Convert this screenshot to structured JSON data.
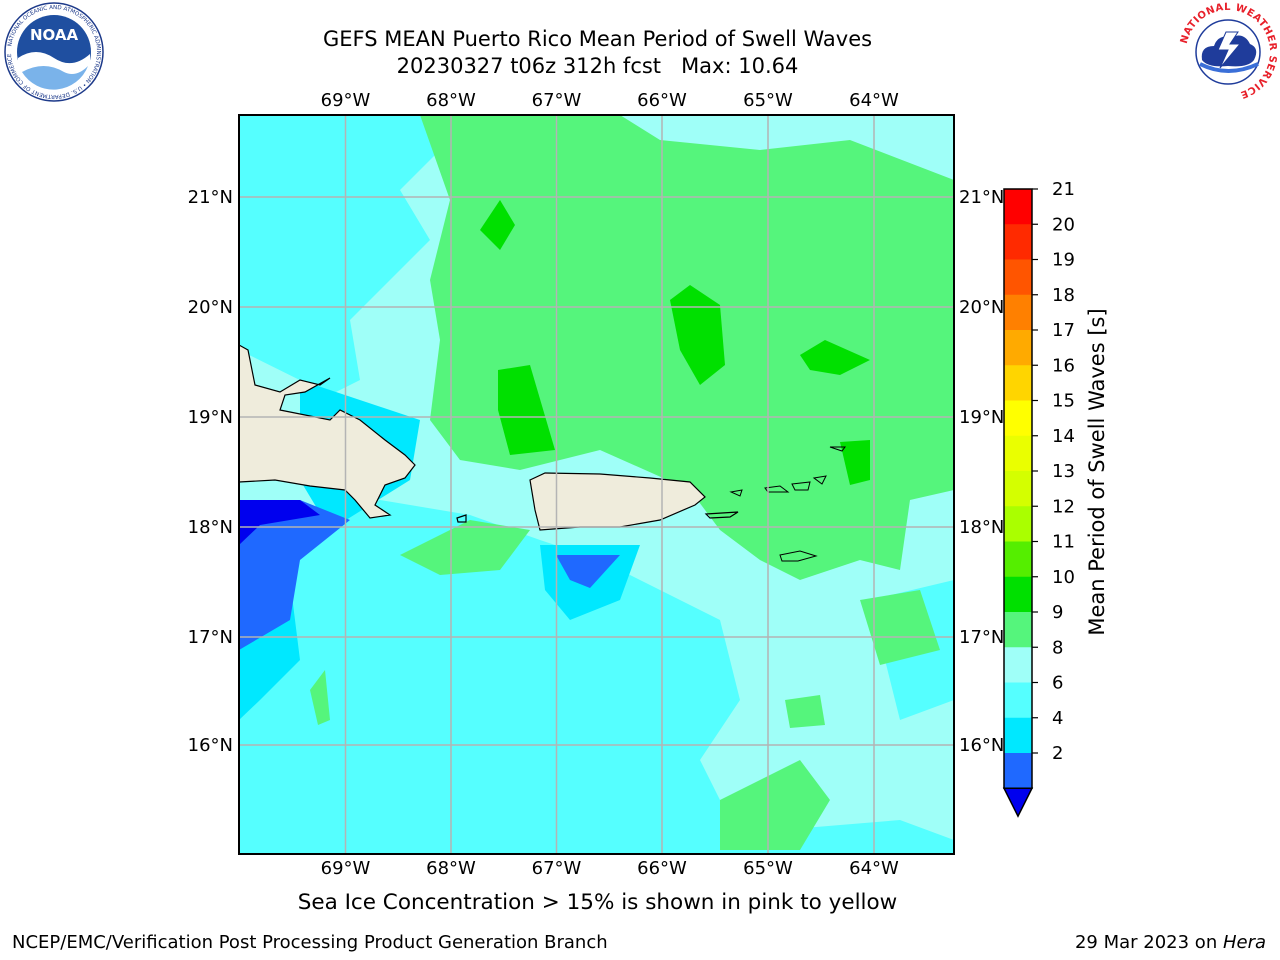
{
  "title": {
    "line1": "GEFS MEAN Puerto Rico Mean Period of Swell Waves",
    "line2": "20230327 t06z 312h fcst   Max: 10.64"
  },
  "map": {
    "lon_labels": [
      "69°W",
      "68°W",
      "67°W",
      "66°W",
      "65°W",
      "64°W"
    ],
    "lat_labels": [
      "21°N",
      "20°N",
      "19°N",
      "18°N",
      "17°N",
      "16°N"
    ],
    "legend_colors": {
      "land": "#efecdc",
      "band_2_4": "#1f69ff",
      "band_4_6": "#00e8ff",
      "band_6_8": "#55ffff",
      "band_8_9": "#9ffff8",
      "band_9_10": "#55f57c",
      "band_10_11": "#00e000"
    }
  },
  "colorbar": {
    "label": "Mean Period of Swell Waves [s]",
    "ticks": [
      "21",
      "20",
      "19",
      "18",
      "17",
      "16",
      "15",
      "14",
      "13",
      "12",
      "11",
      "10",
      "9",
      "8",
      "6",
      "4",
      "2"
    ],
    "colors": [
      "#ff0000",
      "#ff2a00",
      "#ff5500",
      "#ff8000",
      "#ffaa00",
      "#ffd500",
      "#ffff00",
      "#eaff00",
      "#d4ff00",
      "#aaff00",
      "#55ee00",
      "#00e000",
      "#55f57c",
      "#9ffff8",
      "#55ffff",
      "#00e8ff",
      "#1f69ff"
    ],
    "under_color": "#0000ee"
  },
  "subtitle": "Sea Ice Concentration > 15% is shown in pink to yellow",
  "footer": {
    "left": "NCEP/EMC/Verification Post Processing Product Generation Branch",
    "date": "29 Mar 2023 on ",
    "machine": "Hera"
  },
  "logos": {
    "noaa": "NOAA",
    "noaa_ring": "NATIONAL OCEANIC AND ATMOSPHERIC ADMINISTRATION • U.S. DEPARTMENT OF COMMERCE",
    "nws_ring": "NATIONAL WEATHER SERVICE"
  }
}
